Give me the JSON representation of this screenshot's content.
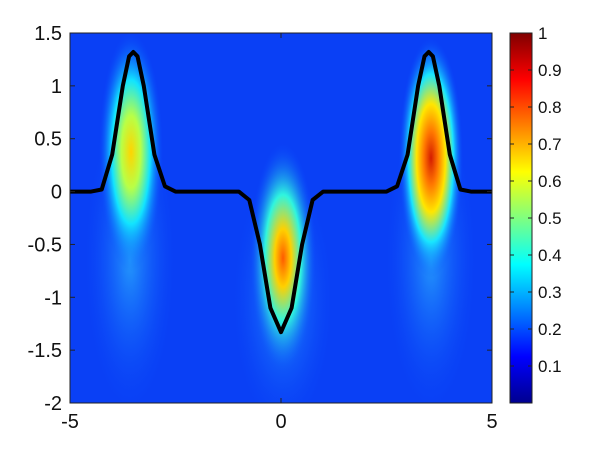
{
  "chart_data": {
    "type": "heatmap",
    "title": "",
    "xlabel": "",
    "ylabel": "",
    "xlim": [
      -5,
      5
    ],
    "ylim": [
      -2,
      1.5
    ],
    "x_ticks": [
      -5,
      0,
      5
    ],
    "x_tick_labels": [
      "-5",
      "0",
      "5"
    ],
    "y_ticks": [
      1.5,
      1,
      0.5,
      0,
      -0.5,
      -1,
      -1.5,
      -2
    ],
    "y_tick_labels": [
      "1.5",
      "1",
      "0.5",
      "0",
      "-0.5",
      "-1",
      "-1.5",
      "-2"
    ],
    "grid": false,
    "colormap": "jet",
    "colorbar": {
      "position": "right",
      "range": [
        0,
        1
      ],
      "ticks": [
        1,
        0.9,
        0.8,
        0.7,
        0.6,
        0.5,
        0.4,
        0.3,
        0.2,
        0.1
      ],
      "tick_labels": [
        "1",
        "0.9",
        "0.8",
        "0.7",
        "0.6",
        "0.5",
        "0.4",
        "0.3",
        "0.2",
        "0.1"
      ]
    },
    "heatmap_hotspots": [
      {
        "x": -3.5,
        "y": 0.35,
        "peak": 0.65
      },
      {
        "x": 0,
        "y": -0.6,
        "peak": 0.75
      },
      {
        "x": 3.5,
        "y": 0.35,
        "peak": 0.95
      }
    ],
    "series": [
      {
        "color": "#000000",
        "x": [
          -5,
          -4.5,
          -4.25,
          -4.0,
          -3.75,
          -3.6,
          -3.5,
          -3.4,
          -3.25,
          -3.0,
          -2.75,
          -2.5,
          -2.0,
          -1.0,
          -0.75,
          -0.5,
          -0.25,
          0,
          0.25,
          0.5,
          0.75,
          1.0,
          2.0,
          2.5,
          2.75,
          3.0,
          3.25,
          3.4,
          3.5,
          3.6,
          3.75,
          4.0,
          4.25,
          4.5,
          5
        ],
        "y": [
          0,
          0,
          0.02,
          0.35,
          1.0,
          1.28,
          1.32,
          1.28,
          1.0,
          0.35,
          0.05,
          0,
          0,
          0,
          -0.08,
          -0.5,
          -1.1,
          -1.33,
          -1.1,
          -0.5,
          -0.08,
          0,
          0,
          0,
          0.05,
          0.35,
          1.0,
          1.28,
          1.32,
          1.28,
          1.0,
          0.35,
          0.02,
          0,
          0
        ]
      }
    ]
  }
}
